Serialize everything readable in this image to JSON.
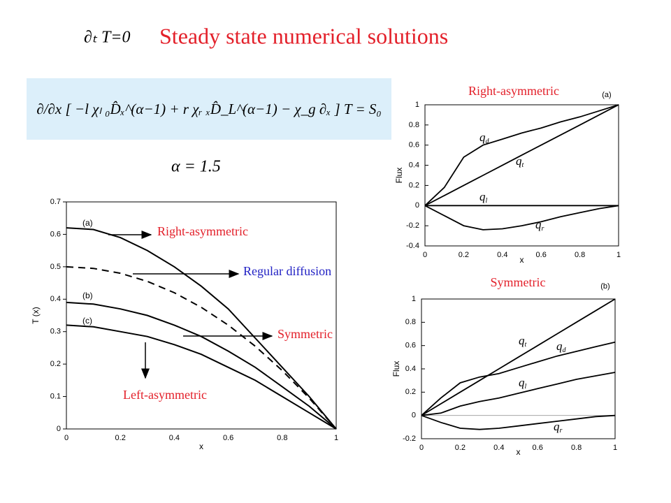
{
  "slide": {
    "title": "Steady state numerical solutions",
    "condition": "∂ₜ T=0",
    "equation": "∂/∂x [ −l χₗ ₀D̂ₓ^(α−1) + r χᵣ ₓD̂_L^(α−1) − χ_g ∂ₓ ] T = S₀",
    "alpha": "α = 1.5"
  },
  "chart_data": [
    {
      "type": "line",
      "xlabel": "x",
      "ylabel": "T (x)",
      "xlim": [
        0,
        1
      ],
      "ylim": [
        0,
        0.7
      ],
      "xticks": [
        0,
        0.2,
        0.4,
        0.6,
        0.8,
        1
      ],
      "yticks": [
        0,
        0.1,
        0.2,
        0.3,
        0.4,
        0.5,
        0.6,
        0.7
      ],
      "x": [
        0,
        0.1,
        0.2,
        0.3,
        0.4,
        0.5,
        0.6,
        0.7,
        0.8,
        0.9,
        1
      ],
      "series": [
        {
          "name": "(a)",
          "color": "#000000",
          "values": [
            0.62,
            0.615,
            0.59,
            0.55,
            0.5,
            0.44,
            0.37,
            0.28,
            0.19,
            0.1,
            0
          ]
        },
        {
          "color": "#000000",
          "dashed": true,
          "values": [
            0.5,
            0.495,
            0.48,
            0.455,
            0.42,
            0.375,
            0.32,
            0.255,
            0.18,
            0.095,
            0
          ]
        },
        {
          "name": "(b)",
          "color": "#000000",
          "values": [
            0.39,
            0.385,
            0.37,
            0.35,
            0.32,
            0.285,
            0.24,
            0.19,
            0.13,
            0.07,
            0
          ]
        },
        {
          "name": "(c)",
          "color": "#000000",
          "values": [
            0.32,
            0.315,
            0.3,
            0.285,
            0.26,
            0.23,
            0.19,
            0.15,
            0.1,
            0.05,
            0
          ]
        }
      ],
      "annotations": [
        {
          "text": "Right-asymmetric",
          "color": "#e3202a"
        },
        {
          "text": "Regular diffusion",
          "color": "#2222c4"
        },
        {
          "text": "Symmetric",
          "color": "#e3202a"
        },
        {
          "text": "Left-asymmetric",
          "color": "#e3202a"
        }
      ]
    },
    {
      "type": "line",
      "title": "Right-asymmetric",
      "title_color": "#e3202a",
      "panel_label": "(a)",
      "xlabel": "x",
      "ylabel": "Flux",
      "xlim": [
        0,
        1
      ],
      "ylim": [
        -0.4,
        1
      ],
      "xticks": [
        0,
        0.2,
        0.4,
        0.6,
        0.8,
        1
      ],
      "yticks": [
        -0.4,
        -0.2,
        0,
        0.2,
        0.4,
        0.6,
        0.8,
        1
      ],
      "x": [
        0,
        0.1,
        0.2,
        0.3,
        0.4,
        0.5,
        0.6,
        0.7,
        0.8,
        0.9,
        1
      ],
      "series": [
        {
          "name": "q",
          "subscript": "d",
          "color": "#000000",
          "values": [
            0,
            0.18,
            0.48,
            0.6,
            0.66,
            0.72,
            0.77,
            0.83,
            0.88,
            0.94,
            1
          ]
        },
        {
          "name": "q",
          "subscript": "t",
          "color": "#000000",
          "values": [
            0,
            0.1,
            0.2,
            0.3,
            0.4,
            0.5,
            0.6,
            0.7,
            0.8,
            0.9,
            1
          ]
        },
        {
          "name": "q",
          "subscript": "l",
          "color": "#000000",
          "values": [
            0,
            0,
            0,
            0,
            0,
            0,
            0,
            0,
            0,
            0,
            0
          ]
        },
        {
          "name": "q",
          "subscript": "r",
          "color": "#000000",
          "values": [
            0,
            -0.1,
            -0.2,
            -0.24,
            -0.23,
            -0.2,
            -0.16,
            -0.11,
            -0.07,
            -0.03,
            0
          ]
        }
      ]
    },
    {
      "type": "line",
      "title": "Symmetric",
      "title_color": "#e3202a",
      "panel_label": "(b)",
      "xlabel": "x",
      "ylabel": "Flux",
      "xlim": [
        0,
        1
      ],
      "ylim": [
        -0.2,
        1
      ],
      "xticks": [
        0,
        0.2,
        0.4,
        0.6,
        0.8,
        1
      ],
      "yticks": [
        -0.2,
        0,
        0.2,
        0.4,
        0.6,
        0.8,
        1
      ],
      "x": [
        0,
        0.1,
        0.2,
        0.3,
        0.4,
        0.5,
        0.6,
        0.7,
        0.8,
        0.9,
        1
      ],
      "series": [
        {
          "name": "q",
          "subscript": "t",
          "color": "#000000",
          "values": [
            0,
            0.1,
            0.2,
            0.3,
            0.4,
            0.5,
            0.6,
            0.7,
            0.8,
            0.9,
            1
          ]
        },
        {
          "name": "q",
          "subscript": "d",
          "color": "#000000",
          "values": [
            0,
            0.15,
            0.28,
            0.33,
            0.36,
            0.41,
            0.46,
            0.51,
            0.55,
            0.59,
            0.63
          ]
        },
        {
          "name": "q",
          "subscript": "l",
          "color": "#000000",
          "values": [
            0,
            0.02,
            0.08,
            0.12,
            0.15,
            0.19,
            0.23,
            0.27,
            0.31,
            0.34,
            0.37
          ]
        },
        {
          "name": "q",
          "subscript": "r",
          "color": "#000000",
          "values": [
            0,
            -0.06,
            -0.11,
            -0.12,
            -0.11,
            -0.09,
            -0.07,
            -0.05,
            -0.03,
            -0.01,
            0
          ]
        }
      ]
    }
  ]
}
